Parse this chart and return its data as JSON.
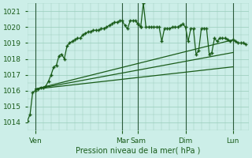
{
  "title": "Pression niveau de la mer( hPa )",
  "bg_color": "#cceee8",
  "grid_color": "#99ccbb",
  "line_color": "#1a5c1a",
  "ylim": [
    1013.5,
    1021.5
  ],
  "yticks": [
    1014,
    1015,
    1016,
    1017,
    1018,
    1019,
    1020,
    1021
  ],
  "xtick_labels": [
    "Ven",
    "Mar",
    "Sam",
    "Dim",
    "Lun"
  ],
  "xtick_positions": [
    3,
    36,
    42,
    60,
    78
  ],
  "vline_positions": [
    3,
    36,
    42,
    60,
    78
  ],
  "total_xlim": [
    0,
    84
  ],
  "series_main": {
    "x": [
      0,
      1,
      2,
      3,
      4,
      5,
      6,
      7,
      8,
      9,
      10,
      11,
      12,
      13,
      14,
      15,
      16,
      17,
      18,
      19,
      20,
      21,
      22,
      23,
      24,
      25,
      26,
      27,
      28,
      29,
      30,
      31,
      32,
      33,
      34,
      35,
      36,
      37,
      38,
      39,
      40,
      41,
      42,
      43,
      44,
      45,
      46,
      47,
      48,
      49,
      50,
      51,
      52,
      53,
      54,
      55,
      56,
      57,
      58,
      59,
      60,
      61,
      62,
      63,
      64,
      65,
      66,
      67,
      68,
      69,
      70,
      71,
      72,
      73,
      74,
      75,
      76,
      77,
      78,
      79,
      80,
      81,
      82,
      83
    ],
    "y": [
      1014.1,
      1014.5,
      1015.9,
      1016.0,
      1016.1,
      1016.2,
      1016.2,
      1016.3,
      1016.6,
      1017.0,
      1017.5,
      1017.6,
      1018.2,
      1018.3,
      1018.0,
      1018.8,
      1019.0,
      1019.1,
      1019.2,
      1019.3,
      1019.3,
      1019.5,
      1019.6,
      1019.7,
      1019.7,
      1019.8,
      1019.8,
      1019.8,
      1019.9,
      1019.9,
      1020.0,
      1020.1,
      1020.2,
      1020.3,
      1020.3,
      1020.4,
      1020.4,
      1020.1,
      1019.9,
      1020.4,
      1020.4,
      1020.4,
      1020.2,
      1020.0,
      1021.5,
      1020.0,
      1020.0,
      1020.0,
      1020.0,
      1020.0,
      1020.0,
      1019.1,
      1019.9,
      1019.9,
      1019.9,
      1020.0,
      1020.0,
      1020.0,
      1020.1,
      1020.2,
      1020.0,
      1019.1,
      1019.9,
      1019.9,
      1018.3,
      1018.5,
      1019.9,
      1019.9,
      1019.9,
      1018.3,
      1018.4,
      1019.3,
      1019.1,
      1019.3,
      1019.3,
      1019.3,
      1019.2,
      1019.1,
      1019.2,
      1019.1,
      1019.0,
      1019.0,
      1019.0,
      1018.9
    ]
  },
  "fan_lines": [
    {
      "x": [
        3,
        78
      ],
      "y": [
        1016.1,
        1019.2
      ]
    },
    {
      "x": [
        3,
        78
      ],
      "y": [
        1016.1,
        1018.4
      ]
    },
    {
      "x": [
        3,
        78
      ],
      "y": [
        1016.1,
        1017.5
      ]
    }
  ]
}
